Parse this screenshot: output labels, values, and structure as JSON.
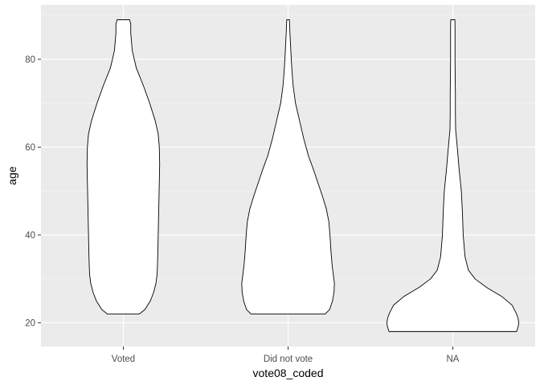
{
  "chart_data": {
    "type": "violin",
    "title": "",
    "xlabel": "vote08_coded",
    "ylabel": "age",
    "categories": [
      "Voted",
      "Did not vote",
      "NA"
    ],
    "ylim": [
      14.6,
      92.4
    ],
    "yticks": [
      20,
      40,
      60,
      80
    ],
    "grid": true,
    "colors": {
      "panel": "#EBEBEB",
      "grid_major": "#FFFFFF",
      "fill": "#FFFFFF",
      "outline": "#000000"
    },
    "violins": [
      {
        "category": "Voted",
        "y_min": 22,
        "y_max": 89,
        "profile": [
          [
            22,
            0.215
          ],
          [
            23,
            0.29
          ],
          [
            25,
            0.365
          ],
          [
            27,
            0.41
          ],
          [
            29,
            0.44
          ],
          [
            31,
            0.455
          ],
          [
            33,
            0.46
          ],
          [
            36,
            0.465
          ],
          [
            40,
            0.47
          ],
          [
            44,
            0.475
          ],
          [
            48,
            0.48
          ],
          [
            52,
            0.485
          ],
          [
            56,
            0.49
          ],
          [
            60,
            0.485
          ],
          [
            63,
            0.47
          ],
          [
            66,
            0.43
          ],
          [
            70,
            0.355
          ],
          [
            74,
            0.27
          ],
          [
            78,
            0.175
          ],
          [
            82,
            0.12
          ],
          [
            86,
            0.1
          ],
          [
            88,
            0.1
          ],
          [
            89,
            0.085
          ]
        ]
      },
      {
        "category": "Did not vote",
        "y_min": 22,
        "y_max": 89,
        "profile": [
          [
            22,
            0.5
          ],
          [
            23,
            0.56
          ],
          [
            25,
            0.6
          ],
          [
            27,
            0.62
          ],
          [
            29,
            0.625
          ],
          [
            31,
            0.61
          ],
          [
            33,
            0.595
          ],
          [
            36,
            0.58
          ],
          [
            40,
            0.565
          ],
          [
            43,
            0.55
          ],
          [
            46,
            0.515
          ],
          [
            49,
            0.46
          ],
          [
            52,
            0.4
          ],
          [
            55,
            0.34
          ],
          [
            58,
            0.275
          ],
          [
            62,
            0.21
          ],
          [
            66,
            0.155
          ],
          [
            70,
            0.1
          ],
          [
            74,
            0.068
          ],
          [
            78,
            0.05
          ],
          [
            82,
            0.037
          ],
          [
            86,
            0.025
          ],
          [
            89,
            0.018
          ]
        ]
      },
      {
        "category": "NA",
        "y_min": 18,
        "y_max": 89,
        "profile": [
          [
            18,
            0.86
          ],
          [
            19,
            0.88
          ],
          [
            20,
            0.89
          ],
          [
            21,
            0.88
          ],
          [
            22,
            0.86
          ],
          [
            24,
            0.8
          ],
          [
            26,
            0.66
          ],
          [
            28,
            0.46
          ],
          [
            30,
            0.3
          ],
          [
            32,
            0.21
          ],
          [
            35,
            0.165
          ],
          [
            40,
            0.14
          ],
          [
            45,
            0.13
          ],
          [
            50,
            0.115
          ],
          [
            55,
            0.085
          ],
          [
            60,
            0.06
          ],
          [
            64,
            0.038
          ],
          [
            68,
            0.035
          ],
          [
            72,
            0.035
          ],
          [
            76,
            0.032
          ],
          [
            80,
            0.03
          ],
          [
            84,
            0.03
          ],
          [
            87,
            0.03
          ],
          [
            89,
            0.028
          ]
        ]
      }
    ]
  }
}
